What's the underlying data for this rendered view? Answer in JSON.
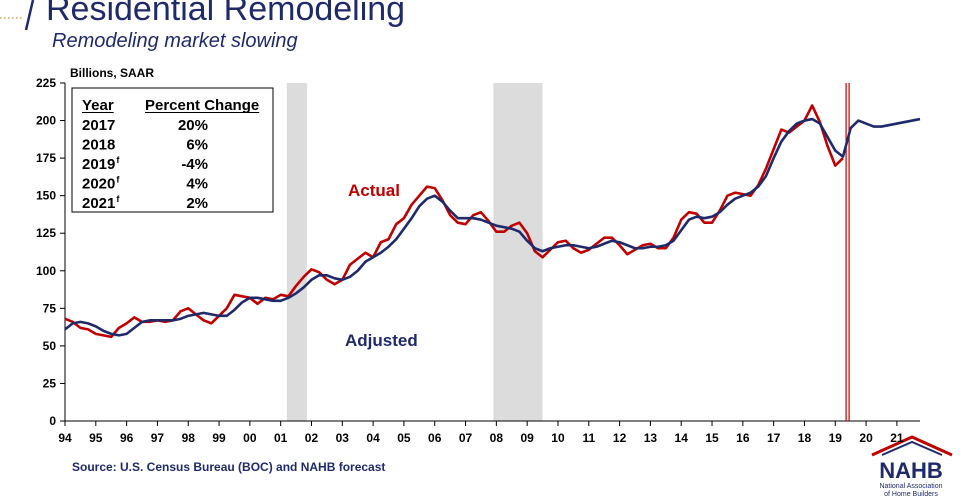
{
  "chart_data": {
    "type": "line",
    "title": "Residential Remodeling",
    "subtitle": "Remodeling market slowing",
    "y_label": "Billions, SAAR",
    "source": "Source: U.S. Census Bureau (BOC) and NAHB forecast",
    "annotations": [
      {
        "text": "Actual",
        "color": "#c00000"
      },
      {
        "text": "Adjusted",
        "color": "#1f2a6b"
      }
    ],
    "xlim": [
      1994,
      2021.75
    ],
    "ylim": [
      0,
      225
    ],
    "yticks": [
      0,
      25,
      50,
      75,
      100,
      125,
      150,
      175,
      200,
      225
    ],
    "xticks": [
      {
        "value": 1994,
        "label": "94"
      },
      {
        "value": 1995,
        "label": "95"
      },
      {
        "value": 1996,
        "label": "96"
      },
      {
        "value": 1997,
        "label": "97"
      },
      {
        "value": 1998,
        "label": "98"
      },
      {
        "value": 1999,
        "label": "99"
      },
      {
        "value": 2000,
        "label": "00"
      },
      {
        "value": 2001,
        "label": "01"
      },
      {
        "value": 2002,
        "label": "02"
      },
      {
        "value": 2003,
        "label": "03"
      },
      {
        "value": 2004,
        "label": "04"
      },
      {
        "value": 2005,
        "label": "05"
      },
      {
        "value": 2006,
        "label": "06"
      },
      {
        "value": 2007,
        "label": "07"
      },
      {
        "value": 2008,
        "label": "08"
      },
      {
        "value": 2009,
        "label": "09"
      },
      {
        "value": 2010,
        "label": "10"
      },
      {
        "value": 2011,
        "label": "11"
      },
      {
        "value": 2012,
        "label": "12"
      },
      {
        "value": 2013,
        "label": "13"
      },
      {
        "value": 2014,
        "label": "14"
      },
      {
        "value": 2015,
        "label": "15"
      },
      {
        "value": 2016,
        "label": "16"
      },
      {
        "value": 2017,
        "label": "17"
      },
      {
        "value": 2018,
        "label": "18"
      },
      {
        "value": 2019,
        "label": "19"
      },
      {
        "value": 2020,
        "label": "20"
      },
      {
        "value": 2021,
        "label": "21"
      }
    ],
    "recessions": [
      [
        2001.2,
        2001.85
      ],
      [
        2007.9,
        2009.5
      ]
    ],
    "recession_color": "#dcdcdc",
    "forecast_start": 2019.4,
    "forecast_color": "#c00000",
    "x": [
      1994,
      1994.25,
      1994.5,
      1994.75,
      1995,
      1995.25,
      1995.5,
      1995.75,
      1996,
      1996.25,
      1996.5,
      1996.75,
      1997,
      1997.25,
      1997.5,
      1997.75,
      1998,
      1998.25,
      1998.5,
      1998.75,
      1999,
      1999.25,
      1999.5,
      1999.75,
      2000,
      2000.25,
      2000.5,
      2000.75,
      2001,
      2001.25,
      2001.5,
      2001.75,
      2002,
      2002.25,
      2002.5,
      2002.75,
      2003,
      2003.25,
      2003.5,
      2003.75,
      2004,
      2004.25,
      2004.5,
      2004.75,
      2005,
      2005.25,
      2005.5,
      2005.75,
      2006,
      2006.25,
      2006.5,
      2006.75,
      2007,
      2007.25,
      2007.5,
      2007.75,
      2008,
      2008.25,
      2008.5,
      2008.75,
      2009,
      2009.25,
      2009.5,
      2009.75,
      2010,
      2010.25,
      2010.5,
      2010.75,
      2011,
      2011.25,
      2011.5,
      2011.75,
      2012,
      2012.25,
      2012.5,
      2012.75,
      2013,
      2013.25,
      2013.5,
      2013.75,
      2014,
      2014.25,
      2014.5,
      2014.75,
      2015,
      2015.25,
      2015.5,
      2015.75,
      2016,
      2016.25,
      2016.5,
      2016.75,
      2017,
      2017.25,
      2017.5,
      2017.75,
      2018,
      2018.25,
      2018.5,
      2018.75,
      2019,
      2019.25,
      2019.5,
      2019.75,
      2020,
      2020.25,
      2020.5,
      2020.75,
      2021,
      2021.25,
      2021.5,
      2021.75
    ],
    "series": [
      {
        "name": "Actual",
        "color": "#c00000",
        "values": [
          68,
          66,
          62,
          61,
          58,
          57,
          56,
          62,
          65,
          69,
          66,
          66,
          67,
          66,
          67,
          73,
          75,
          71,
          67,
          65,
          70,
          75,
          84,
          83,
          82,
          78,
          82,
          81,
          84,
          83,
          90,
          96,
          101,
          99,
          94,
          91,
          94,
          104,
          108,
          112,
          109,
          119,
          121,
          131,
          135,
          144,
          150,
          156,
          155,
          147,
          137,
          132,
          131,
          137,
          139,
          133,
          126,
          126,
          130,
          132,
          125,
          113,
          109,
          114,
          119,
          120,
          115,
          112,
          114,
          118,
          122,
          122,
          117,
          111,
          114,
          117,
          118,
          115,
          115,
          122,
          134,
          139,
          138,
          132,
          132,
          140,
          150,
          152,
          151,
          150,
          157,
          168,
          181,
          194,
          192,
          196,
          200,
          210,
          199,
          183,
          170,
          175,
          null,
          null,
          null,
          null,
          null,
          null,
          null,
          null,
          null,
          null
        ]
      },
      {
        "name": "Adjusted",
        "color": "#1f2a6b",
        "values": [
          61,
          65,
          66,
          65,
          63,
          60,
          58,
          57,
          58,
          62,
          66,
          67,
          67,
          67,
          67,
          68,
          70,
          71,
          72,
          71,
          70,
          70,
          74,
          79,
          82,
          82,
          81,
          80,
          80,
          82,
          85,
          89,
          94,
          97,
          97,
          95,
          94,
          96,
          100,
          106,
          109,
          112,
          116,
          121,
          128,
          135,
          143,
          148,
          150,
          146,
          140,
          135,
          135,
          135,
          134,
          132,
          130,
          129,
          128,
          126,
          120,
          115,
          113,
          115,
          116,
          117,
          117,
          116,
          115,
          116,
          118,
          120,
          119,
          117,
          115,
          115,
          116,
          116,
          117,
          120,
          127,
          134,
          136,
          135,
          136,
          139,
          144,
          148,
          150,
          152,
          156,
          163,
          175,
          186,
          193,
          198,
          200,
          201,
          198,
          189,
          180,
          176,
          195,
          200,
          198,
          196,
          196,
          197,
          198,
          199,
          200,
          201
        ]
      }
    ],
    "table": {
      "header": [
        "Year",
        "Percent Change"
      ],
      "rows": [
        {
          "year": "2017",
          "change": "20%"
        },
        {
          "year": "2018",
          "change": "6%"
        },
        {
          "year": "2019",
          "mark": "f",
          "change": "-4%"
        },
        {
          "year": "2020",
          "mark": "f",
          "change": "4%"
        },
        {
          "year": "2021",
          "mark": "f",
          "change": "2%"
        }
      ]
    },
    "logo": {
      "name": "NAHB",
      "tagline": [
        "National Association",
        "of Home Builders"
      ]
    }
  }
}
